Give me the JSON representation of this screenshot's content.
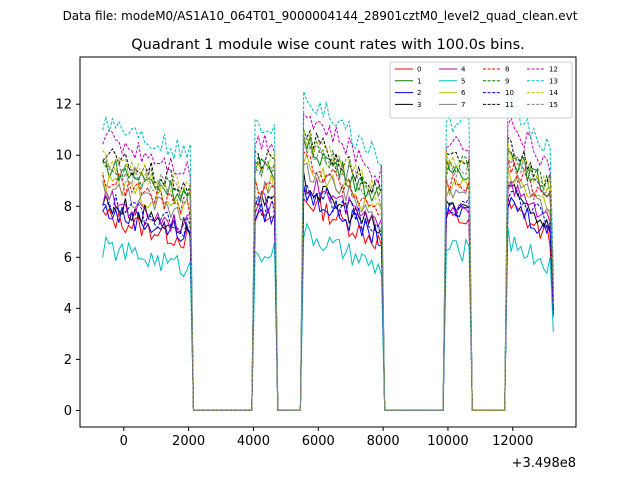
{
  "chart_data": {
    "type": "line",
    "suptitle": "Data file: modeM0/AS1A10_064T01_9000004144_28901cztM0_level2_quad_clean.evt",
    "title": "Quadrant 1 module wise count rates with 100.0s bins.",
    "xlabel": "",
    "ylabel": "",
    "offset_label": "+3.498e8",
    "xlim": [
      -1350,
      13950
    ],
    "ylim": [
      -0.65,
      13.85
    ],
    "xticks": [
      0,
      2000,
      4000,
      6000,
      8000,
      10000,
      12000
    ],
    "xtick_labels": [
      "0",
      "2000",
      "4000",
      "6000",
      "8000",
      "10000",
      "12000"
    ],
    "yticks": [
      0,
      2,
      4,
      6,
      8,
      10,
      12
    ],
    "ytick_labels": [
      "0",
      "2",
      "4",
      "6",
      "8",
      "10",
      "12"
    ],
    "grid": false,
    "legend_position": "top-right",
    "x_start": -650,
    "x_step": 100,
    "segments": [
      {
        "from": -650,
        "to": 2050
      },
      {
        "from": 4050,
        "to": 4650
      },
      {
        "from": 5550,
        "to": 7950
      },
      {
        "from": 9950,
        "to": 10650
      },
      {
        "from": 11850,
        "to": 13250
      }
    ],
    "gap_value": 0,
    "series": [
      {
        "name": "0",
        "color": "#ff0000",
        "dash": "solid",
        "level": 6.8
      },
      {
        "name": "1",
        "color": "#008000",
        "dash": "solid",
        "level": 8.6
      },
      {
        "name": "2",
        "color": "#0000ff",
        "dash": "solid",
        "level": 7.0
      },
      {
        "name": "3",
        "color": "#000000",
        "dash": "solid",
        "level": 7.3
      },
      {
        "name": "4",
        "color": "#bf00bf",
        "dash": "solid",
        "level": 7.4
      },
      {
        "name": "5",
        "color": "#00bfbf",
        "dash": "solid",
        "level": 5.7
      },
      {
        "name": "6",
        "color": "#bfbf00",
        "dash": "solid",
        "level": 8.0
      },
      {
        "name": "7",
        "color": "#808080",
        "dash": "solid",
        "level": 7.8
      },
      {
        "name": "8",
        "color": "#ff0000",
        "dash": "dashed",
        "level": 8.1
      },
      {
        "name": "9",
        "color": "#008000",
        "dash": "dashed",
        "level": 8.7
      },
      {
        "name": "10",
        "color": "#0000ff",
        "dash": "dashed",
        "level": 7.3
      },
      {
        "name": "11",
        "color": "#000000",
        "dash": "dashed",
        "level": 8.9
      },
      {
        "name": "12",
        "color": "#bf00bf",
        "dash": "dashed",
        "level": 9.6
      },
      {
        "name": "13",
        "color": "#00bfbf",
        "dash": "dashed",
        "level": 10.2
      },
      {
        "name": "14",
        "color": "#bfbf00",
        "dash": "dashed",
        "level": 8.8
      },
      {
        "name": "15",
        "color": "#808080",
        "dash": "dashed",
        "level": 8.6
      }
    ]
  }
}
